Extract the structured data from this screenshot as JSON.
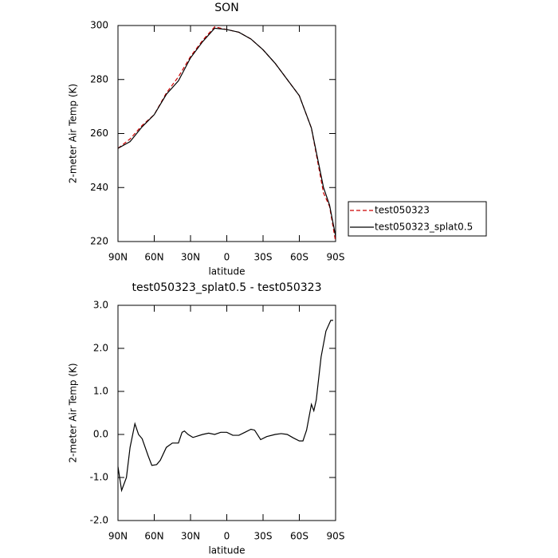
{
  "chart_data": [
    {
      "type": "line",
      "title": "SON",
      "xlabel": "latitude",
      "ylabel": "2-meter Air Temp (K)",
      "xlim": [
        90,
        -90
      ],
      "ylim": [
        220,
        300
      ],
      "xticks": [
        {
          "value": 90,
          "label": "90N"
        },
        {
          "value": 60,
          "label": "60N"
        },
        {
          "value": 30,
          "label": "30N"
        },
        0,
        {
          "value": -30,
          "label": "30S"
        },
        {
          "value": -60,
          "label": "60S"
        },
        {
          "value": -90,
          "label": "90S"
        }
      ],
      "yticks": [
        220,
        240,
        260,
        280,
        300
      ],
      "x": [
        90,
        80,
        70,
        60,
        50,
        40,
        30,
        20,
        10,
        0,
        -10,
        -20,
        -30,
        -40,
        -50,
        -60,
        -70,
        -80,
        -85,
        -90
      ],
      "series": [
        {
          "name": "test050323",
          "color": "#cc0000",
          "dash": true,
          "values": [
            254.5,
            258,
            263,
            267,
            275,
            281,
            288.5,
            294.5,
            299.5,
            298.5,
            297.5,
            295,
            291,
            286,
            280,
            274,
            262,
            238,
            233,
            220
          ]
        },
        {
          "name": "test050323_splat0.5",
          "color": "#000000",
          "dash": false,
          "values": [
            254.5,
            257,
            262.5,
            267,
            274.5,
            279.5,
            288,
            294,
            299,
            298.5,
            297.5,
            295,
            291,
            286,
            280,
            274,
            262,
            240,
            233.5,
            222
          ]
        }
      ]
    },
    {
      "type": "line",
      "title": "test050323_splat0.5 - test050323",
      "xlabel": "latitude",
      "ylabel": "2-meter Air Temp (K)",
      "xlim": [
        90,
        -90
      ],
      "ylim": [
        -2,
        3
      ],
      "xticks": [
        {
          "value": 90,
          "label": "90N"
        },
        {
          "value": 60,
          "label": "60N"
        },
        {
          "value": 30,
          "label": "30N"
        },
        0,
        {
          "value": -30,
          "label": "30S"
        },
        {
          "value": -60,
          "label": "60S"
        },
        {
          "value": -90,
          "label": "90S"
        }
      ],
      "yticks": [
        {
          "value": -2,
          "label": "-2.0"
        },
        {
          "value": -1,
          "label": "-1.0"
        },
        {
          "value": 0,
          "label": "0.0"
        },
        {
          "value": 1,
          "label": "1.0"
        },
        {
          "value": 2,
          "label": "2.0"
        },
        {
          "value": 3,
          "label": "3.0"
        }
      ],
      "x": [
        90,
        87,
        83,
        80,
        76,
        73,
        70,
        65,
        62,
        58,
        55,
        50,
        45,
        40,
        37,
        35,
        32,
        28,
        20,
        15,
        10,
        5,
        0,
        -5,
        -10,
        -15,
        -20,
        -23,
        -28,
        -33,
        -40,
        -45,
        -50,
        -55,
        -60,
        -63,
        -66,
        -70,
        -72,
        -74,
        -78,
        -82,
        -86,
        -88
      ],
      "series": [
        {
          "color": "#000000",
          "dash": false,
          "values": [
            -0.75,
            -1.3,
            -1.0,
            -0.3,
            0.25,
            0.0,
            -0.1,
            -0.5,
            -0.72,
            -0.7,
            -0.6,
            -0.3,
            -0.2,
            -0.2,
            0.05,
            0.08,
            0,
            -0.07,
            0,
            0.03,
            0.0,
            0.05,
            0.05,
            -0.02,
            -0.02,
            0.05,
            0.12,
            0.1,
            -0.12,
            -0.05,
            0,
            0.02,
            0.0,
            -0.08,
            -0.15,
            -0.15,
            0.1,
            0.7,
            0.55,
            0.8,
            1.8,
            2.4,
            2.65,
            2.65
          ]
        }
      ]
    }
  ]
}
